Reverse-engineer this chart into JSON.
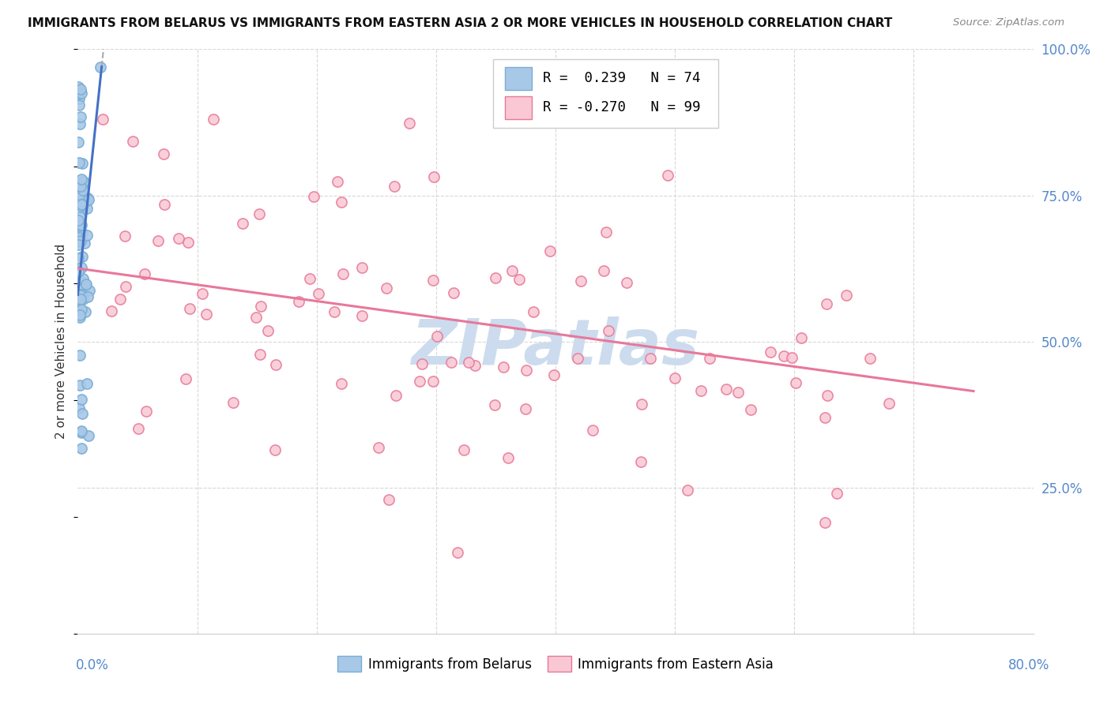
{
  "title": "IMMIGRANTS FROM BELARUS VS IMMIGRANTS FROM EASTERN ASIA 2 OR MORE VEHICLES IN HOUSEHOLD CORRELATION CHART",
  "source": "Source: ZipAtlas.com",
  "ylabel": "2 or more Vehicles in Household",
  "legend_blue_R": "0.239",
  "legend_blue_N": "74",
  "legend_pink_R": "-0.270",
  "legend_pink_N": "99",
  "blue_color": "#a8c8e8",
  "blue_edge_color": "#7aaed4",
  "blue_line_color": "#4472c4",
  "pink_color": "#f9c8d4",
  "pink_edge_color": "#e87898",
  "pink_line_color": "#e8789a",
  "watermark_color": "#ccdcee",
  "grid_color": "#d8d8d8",
  "tick_color": "#5588cc"
}
